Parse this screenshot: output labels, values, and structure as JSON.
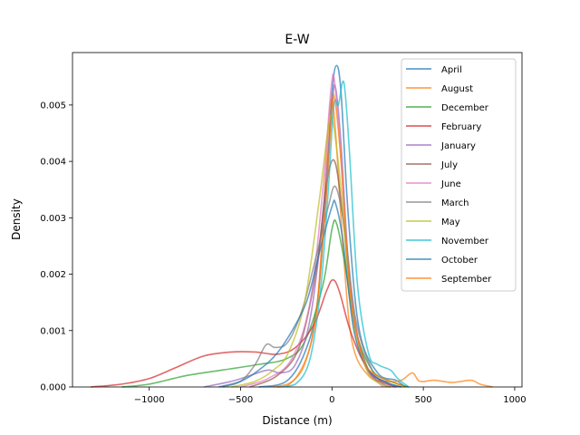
{
  "chart_data": {
    "type": "line",
    "title": "E-W",
    "xlabel": "Distance (m)",
    "ylabel": "Density",
    "xlim": [
      -1420,
      1040
    ],
    "ylim": [
      0,
      0.00593
    ],
    "xticks": [
      {
        "value": -1000,
        "label": "−1000"
      },
      {
        "value": -500,
        "label": "−500"
      },
      {
        "value": 0,
        "label": "0"
      },
      {
        "value": 500,
        "label": "500"
      },
      {
        "value": 1000,
        "label": "1000"
      }
    ],
    "yticks": [
      {
        "value": 0,
        "label": "0.000"
      },
      {
        "value": 0.001,
        "label": "0.001"
      },
      {
        "value": 0.002,
        "label": "0.002"
      },
      {
        "value": 0.003,
        "label": "0.003"
      },
      {
        "value": 0.004,
        "label": "0.004"
      },
      {
        "value": 0.005,
        "label": "0.005"
      }
    ],
    "grid": false,
    "legend_position": "top-right",
    "series": [
      {
        "name": "April",
        "color": "#1f77b4",
        "points": [
          [
            -400,
            0
          ],
          [
            -250,
            0.0001
          ],
          [
            -150,
            0.0006
          ],
          [
            -80,
            0.0015
          ],
          [
            -30,
            0.0035
          ],
          [
            0,
            0.0052
          ],
          [
            25,
            0.0057
          ],
          [
            50,
            0.0052
          ],
          [
            90,
            0.003
          ],
          [
            150,
            0.001
          ],
          [
            250,
            0.00025
          ],
          [
            350,
            0.00012
          ],
          [
            400,
            0
          ]
        ]
      },
      {
        "name": "August",
        "color": "#ff7f0e",
        "points": [
          [
            -250,
            0
          ],
          [
            -150,
            0.0004
          ],
          [
            -80,
            0.0015
          ],
          [
            -30,
            0.004
          ],
          [
            -5,
            0.0051
          ],
          [
            20,
            0.0045
          ],
          [
            60,
            0.0025
          ],
          [
            110,
            0.0008
          ],
          [
            200,
            0.0002
          ],
          [
            300,
            0.0001
          ],
          [
            380,
            0.00012
          ],
          [
            440,
            0.00025
          ],
          [
            480,
            0.0001
          ],
          [
            560,
            0.00012
          ],
          [
            660,
            8e-05
          ],
          [
            760,
            0.00012
          ],
          [
            810,
            5e-05
          ],
          [
            880,
            0
          ]
        ]
      },
      {
        "name": "December",
        "color": "#2ca02c",
        "points": [
          [
            -1150,
            0
          ],
          [
            -1000,
            5e-05
          ],
          [
            -800,
            0.0002
          ],
          [
            -600,
            0.0003
          ],
          [
            -400,
            0.0004
          ],
          [
            -250,
            0.0005
          ],
          [
            -150,
            0.0008
          ],
          [
            -50,
            0.0018
          ],
          [
            0,
            0.0028
          ],
          [
            25,
            0.0029
          ],
          [
            70,
            0.0022
          ],
          [
            130,
            0.001
          ],
          [
            220,
            0.0003
          ],
          [
            320,
            0.0001
          ],
          [
            420,
            0
          ]
        ]
      },
      {
        "name": "February",
        "color": "#d62728",
        "points": [
          [
            -1320,
            0
          ],
          [
            -1150,
            5e-05
          ],
          [
            -1000,
            0.00015
          ],
          [
            -850,
            0.00035
          ],
          [
            -700,
            0.00055
          ],
          [
            -550,
            0.00062
          ],
          [
            -420,
            0.00062
          ],
          [
            -300,
            0.00058
          ],
          [
            -200,
            0.0007
          ],
          [
            -100,
            0.0011
          ],
          [
            -30,
            0.0017
          ],
          [
            5,
            0.0019
          ],
          [
            40,
            0.0017
          ],
          [
            100,
            0.001
          ],
          [
            180,
            0.0004
          ],
          [
            270,
            0.0001
          ],
          [
            350,
            0
          ]
        ]
      },
      {
        "name": "January",
        "color": "#9467bd",
        "points": [
          [
            -700,
            0
          ],
          [
            -550,
            0.0001
          ],
          [
            -450,
            0.0002
          ],
          [
            -350,
            0.0003
          ],
          [
            -280,
            0.00025
          ],
          [
            -200,
            0.0004
          ],
          [
            -120,
            0.0012
          ],
          [
            -50,
            0.003
          ],
          [
            0,
            0.005
          ],
          [
            20,
            0.0053
          ],
          [
            50,
            0.0043
          ],
          [
            100,
            0.0018
          ],
          [
            180,
            0.0004
          ],
          [
            280,
            0.0001
          ],
          [
            350,
            0
          ]
        ]
      },
      {
        "name": "July",
        "color": "#8c564b",
        "points": [
          [
            -450,
            0
          ],
          [
            -300,
            0.0002
          ],
          [
            -180,
            0.0007
          ],
          [
            -90,
            0.002
          ],
          [
            -30,
            0.0036
          ],
          [
            15,
            0.004
          ],
          [
            60,
            0.003
          ],
          [
            120,
            0.0012
          ],
          [
            200,
            0.0003
          ],
          [
            280,
            5e-05
          ],
          [
            320,
            0
          ]
        ]
      },
      {
        "name": "June",
        "color": "#e377c2",
        "points": [
          [
            -500,
            0
          ],
          [
            -350,
            0.00015
          ],
          [
            -220,
            0.0005
          ],
          [
            -120,
            0.0015
          ],
          [
            -50,
            0.0035
          ],
          [
            -5,
            0.0053
          ],
          [
            15,
            0.0054
          ],
          [
            50,
            0.004
          ],
          [
            100,
            0.0017
          ],
          [
            180,
            0.0004
          ],
          [
            280,
            0
          ]
        ]
      },
      {
        "name": "March",
        "color": "#7f7f7f",
        "points": [
          [
            -600,
            0
          ],
          [
            -500,
            0.0001
          ],
          [
            -420,
            0.0004
          ],
          [
            -360,
            0.00075
          ],
          [
            -310,
            0.0007
          ],
          [
            -240,
            0.0008
          ],
          [
            -160,
            0.0014
          ],
          [
            -80,
            0.0024
          ],
          [
            -20,
            0.0032
          ],
          [
            20,
            0.00355
          ],
          [
            70,
            0.0028
          ],
          [
            130,
            0.0012
          ],
          [
            220,
            0.0003
          ],
          [
            300,
            8e-05
          ],
          [
            380,
            0
          ]
        ]
      },
      {
        "name": "May",
        "color": "#bcbd22",
        "points": [
          [
            -550,
            0
          ],
          [
            -420,
            0.0001
          ],
          [
            -320,
            0.0003
          ],
          [
            -240,
            0.0006
          ],
          [
            -150,
            0.0015
          ],
          [
            -70,
            0.0033
          ],
          [
            -20,
            0.0046
          ],
          [
            5,
            0.0047
          ],
          [
            50,
            0.0035
          ],
          [
            110,
            0.0013
          ],
          [
            190,
            0.0003
          ],
          [
            270,
            5e-05
          ],
          [
            320,
            0
          ]
        ]
      },
      {
        "name": "November",
        "color": "#17becf",
        "points": [
          [
            -300,
            0
          ],
          [
            -200,
            5e-05
          ],
          [
            -120,
            0.0005
          ],
          [
            -60,
            0.0018
          ],
          [
            -20,
            0.0035
          ],
          [
            10,
            0.005
          ],
          [
            35,
            0.005
          ],
          [
            65,
            0.0054
          ],
          [
            95,
            0.0042
          ],
          [
            140,
            0.0018
          ],
          [
            200,
            0.0006
          ],
          [
            250,
            0.0004
          ],
          [
            320,
            0.0003
          ],
          [
            360,
            0.00015
          ],
          [
            420,
            0
          ]
        ]
      },
      {
        "name": "October",
        "color": "#1f77b4",
        "points": [
          [
            -620,
            0
          ],
          [
            -500,
            0.0001
          ],
          [
            -400,
            0.0003
          ],
          [
            -300,
            0.0006
          ],
          [
            -200,
            0.0011
          ],
          [
            -130,
            0.0016
          ],
          [
            -60,
            0.0025
          ],
          [
            0,
            0.0032
          ],
          [
            20,
            0.00325
          ],
          [
            60,
            0.0026
          ],
          [
            120,
            0.001
          ],
          [
            200,
            0.0003
          ],
          [
            300,
            8e-05
          ],
          [
            380,
            0
          ]
        ]
      },
      {
        "name": "September",
        "color": "#ff7f0e",
        "points": [
          [
            -320,
            0
          ],
          [
            -200,
            0.00015
          ],
          [
            -100,
            0.001
          ],
          [
            -40,
            0.003
          ],
          [
            0,
            0.0049
          ],
          [
            15,
            0.0051
          ],
          [
            50,
            0.004
          ],
          [
            100,
            0.0017
          ],
          [
            170,
            0.0005
          ],
          [
            250,
            0.0002
          ],
          [
            340,
            8e-05
          ],
          [
            400,
            0
          ]
        ]
      }
    ]
  }
}
